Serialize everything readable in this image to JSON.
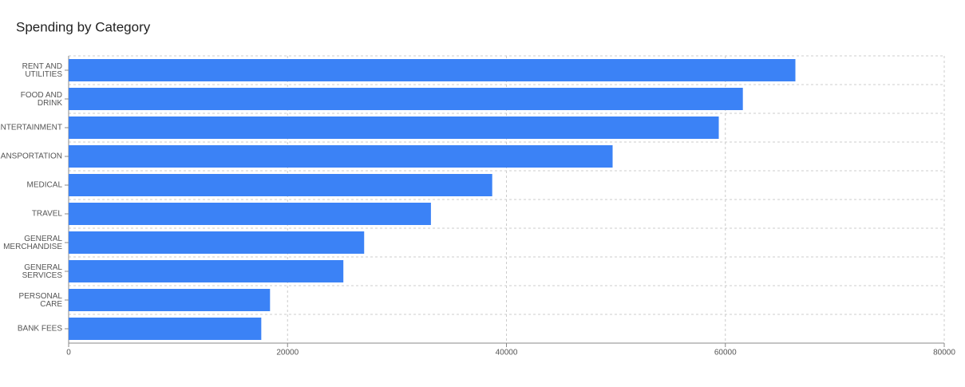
{
  "chart_data": {
    "type": "bar",
    "orientation": "horizontal",
    "title": "Spending by Category",
    "categories": [
      "RENT AND UTILITIES",
      "FOOD AND DRINK",
      "ENTERTAINMENT",
      "TRANSPORTATION",
      "MEDICAL",
      "TRAVEL",
      "GENERAL MERCHANDISE",
      "GENERAL SERVICES",
      "PERSONAL CARE",
      "BANK FEES"
    ],
    "values": [
      66400,
      61600,
      59400,
      49700,
      38700,
      33100,
      27000,
      25100,
      18400,
      17600
    ],
    "color": "#3b82f6",
    "xlim": [
      0,
      80000
    ],
    "xticks": [
      0,
      20000,
      40000,
      60000,
      80000
    ],
    "grid": true
  }
}
